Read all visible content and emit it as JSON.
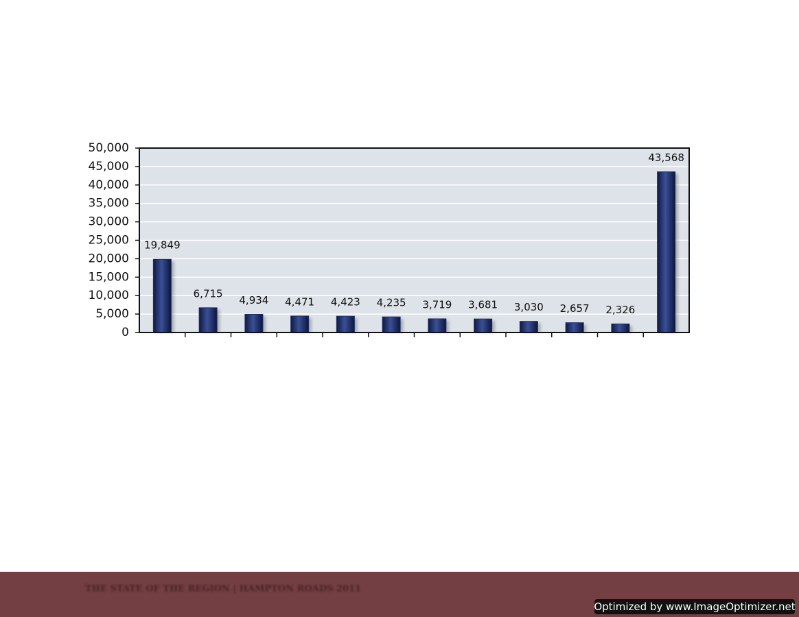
{
  "chart_data": {
    "type": "bar",
    "categories": [
      null,
      null,
      null,
      null,
      null,
      null,
      null,
      null,
      null,
      null,
      null,
      null
    ],
    "values": [
      19849,
      6715,
      4934,
      4471,
      4423,
      4235,
      3719,
      3681,
      3030,
      2657,
      2326,
      43568
    ],
    "value_labels": [
      "19,849",
      "6,715",
      "4,934",
      "4,471",
      "4,423",
      "4,235",
      "3,719",
      "3,681",
      "3,030",
      "2,657",
      "2,326",
      "43,568"
    ],
    "color": "#1f2f6b",
    "ylim": [
      0,
      50000
    ],
    "yticks": [
      0,
      {
        "value": 5000,
        "label": "5,000"
      },
      {
        "value": 10000,
        "label": "10,000"
      },
      {
        "value": 15000,
        "label": "15,000"
      },
      {
        "value": 20000,
        "label": "20,000"
      },
      {
        "value": 25000,
        "label": "25,000"
      },
      {
        "value": 30000,
        "label": "30,000"
      },
      {
        "value": 35000,
        "label": "35,000"
      },
      {
        "value": 40000,
        "label": "40,000"
      },
      {
        "value": 45000,
        "label": "45,000"
      },
      {
        "value": 50000,
        "label": "50,000"
      }
    ],
    "grid": true
  },
  "footer": {
    "text": "THE STATE OF THE REGION  |  HAMPTON ROADS 2011",
    "watermark": "Optimized by www.ImageOptimizer.net"
  }
}
